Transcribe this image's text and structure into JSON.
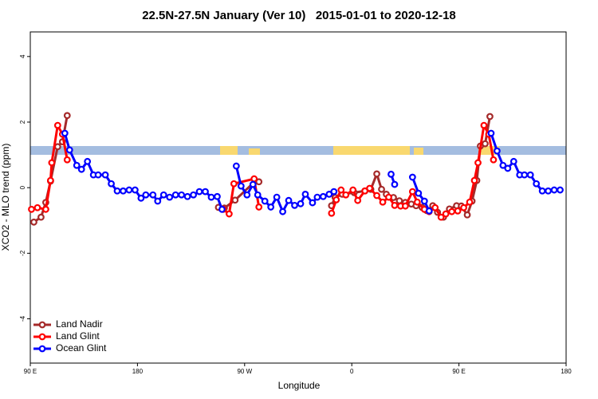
{
  "chart_data": {
    "type": "line",
    "title": "22.5N-27.5N January (Ver 10)   2015-01-01 to 2020-12-18",
    "x_label": "Longitude",
    "y_label": "XCO2 - MLO trend (ppm)",
    "xlim": [
      90,
      540
    ],
    "xticks": [
      {
        "value": 90,
        "label": "90 E"
      },
      180,
      {
        "value": 270,
        "label": "90 W"
      },
      {
        "value": 360,
        "label": "0"
      },
      {
        "value": 450,
        "label": "90 E"
      },
      {
        "value": 540,
        "label": "180"
      }
    ],
    "ylim": [
      -5.35,
      4.75
    ],
    "yticks": [
      -4,
      -2,
      0,
      2,
      4
    ],
    "legend": "bottom-left",
    "series": [
      {
        "name": "Land Nadir",
        "color": "#a52a2a",
        "x": [
          93,
          99,
          103,
          107,
          113,
          117,
          121,
          null,
          248,
          253,
          262,
          279,
          282,
          null,
          343,
          346,
          352,
          362,
          371,
          376,
          381,
          385,
          389,
          395,
          400,
          405,
          410,
          414,
          419,
          423,
          428,
          432,
          437,
          442,
          448,
          452,
          457,
          461,
          465,
          468,
          472,
          476
        ],
        "values": [
          -1.05,
          -0.9,
          -0.45,
          0.2,
          1.25,
          1.4,
          2.2,
          null,
          -0.6,
          -0.62,
          -0.38,
          0.2,
          0.18,
          null,
          -0.55,
          -0.3,
          -0.2,
          -0.15,
          -0.1,
          -0.05,
          0.42,
          -0.05,
          -0.2,
          -0.3,
          -0.4,
          -0.45,
          -0.5,
          -0.55,
          -0.6,
          -0.7,
          -0.55,
          -0.75,
          -0.9,
          -0.65,
          -0.55,
          -0.56,
          -0.83,
          -0.41,
          0.22,
          1.27,
          1.34,
          2.17
        ]
      },
      {
        "name": "Land Glint",
        "color": "#ff0000",
        "x": [
          91,
          96,
          103,
          107,
          108,
          113,
          117,
          121,
          null,
          252,
          257,
          261,
          278,
          282,
          null,
          343,
          347,
          351,
          355,
          361,
          365,
          371,
          375,
          381,
          386,
          391,
          396,
          401,
          405,
          411,
          415,
          421,
          425,
          430,
          435,
          439,
          444,
          449,
          454,
          459,
          463,
          466,
          471,
          475,
          479
        ],
        "values": [
          -0.66,
          -0.61,
          -0.66,
          0.22,
          0.76,
          1.9,
          1.63,
          0.85,
          null,
          -0.66,
          -0.8,
          0.12,
          0.27,
          -0.59,
          null,
          -0.78,
          -0.37,
          -0.07,
          -0.22,
          -0.07,
          -0.39,
          -0.1,
          -0.02,
          -0.24,
          -0.44,
          -0.29,
          -0.54,
          -0.56,
          -0.56,
          -0.12,
          -0.44,
          -0.66,
          -0.73,
          -0.61,
          -0.9,
          -0.8,
          -0.73,
          -0.71,
          -0.61,
          -0.44,
          0.22,
          0.76,
          1.9,
          1.63,
          0.85
        ]
      },
      {
        "name": "Ocean Glint",
        "color": "#0000ff",
        "x": [
          119,
          123,
          129,
          133,
          138,
          143,
          147,
          153,
          158,
          163,
          168,
          173,
          178,
          183,
          187,
          193,
          197,
          202,
          207,
          212,
          217,
          222,
          227,
          232,
          237,
          242,
          247,
          251,
          null,
          263,
          267,
          272,
          277,
          281,
          287,
          292,
          297,
          302,
          307,
          312,
          317,
          321,
          327,
          331,
          336,
          341,
          345,
          null,
          393,
          396,
          null,
          411,
          416,
          421,
          425,
          null,
          477,
          482,
          487,
          491,
          496,
          501,
          505,
          510,
          515,
          520,
          525,
          530,
          535
        ],
        "values": [
          1.66,
          1.15,
          0.68,
          0.56,
          0.8,
          0.39,
          0.39,
          0.39,
          0.12,
          -0.1,
          -0.1,
          -0.07,
          -0.07,
          -0.32,
          -0.22,
          -0.22,
          -0.41,
          -0.22,
          -0.29,
          -0.22,
          -0.22,
          -0.27,
          -0.22,
          -0.12,
          -0.12,
          -0.29,
          -0.27,
          -0.66,
          null,
          0.66,
          0.05,
          -0.22,
          0.1,
          -0.22,
          -0.41,
          -0.59,
          -0.29,
          -0.73,
          -0.39,
          -0.54,
          -0.49,
          -0.2,
          -0.46,
          -0.29,
          -0.27,
          -0.2,
          -0.12,
          null,
          0.41,
          0.1,
          null,
          0.32,
          -0.17,
          -0.41,
          -0.71,
          null,
          1.66,
          1.12,
          0.68,
          0.59,
          0.8,
          0.39,
          0.39,
          0.39,
          0.12,
          -0.1,
          -0.1,
          -0.07,
          -0.07
        ]
      }
    ]
  }
}
